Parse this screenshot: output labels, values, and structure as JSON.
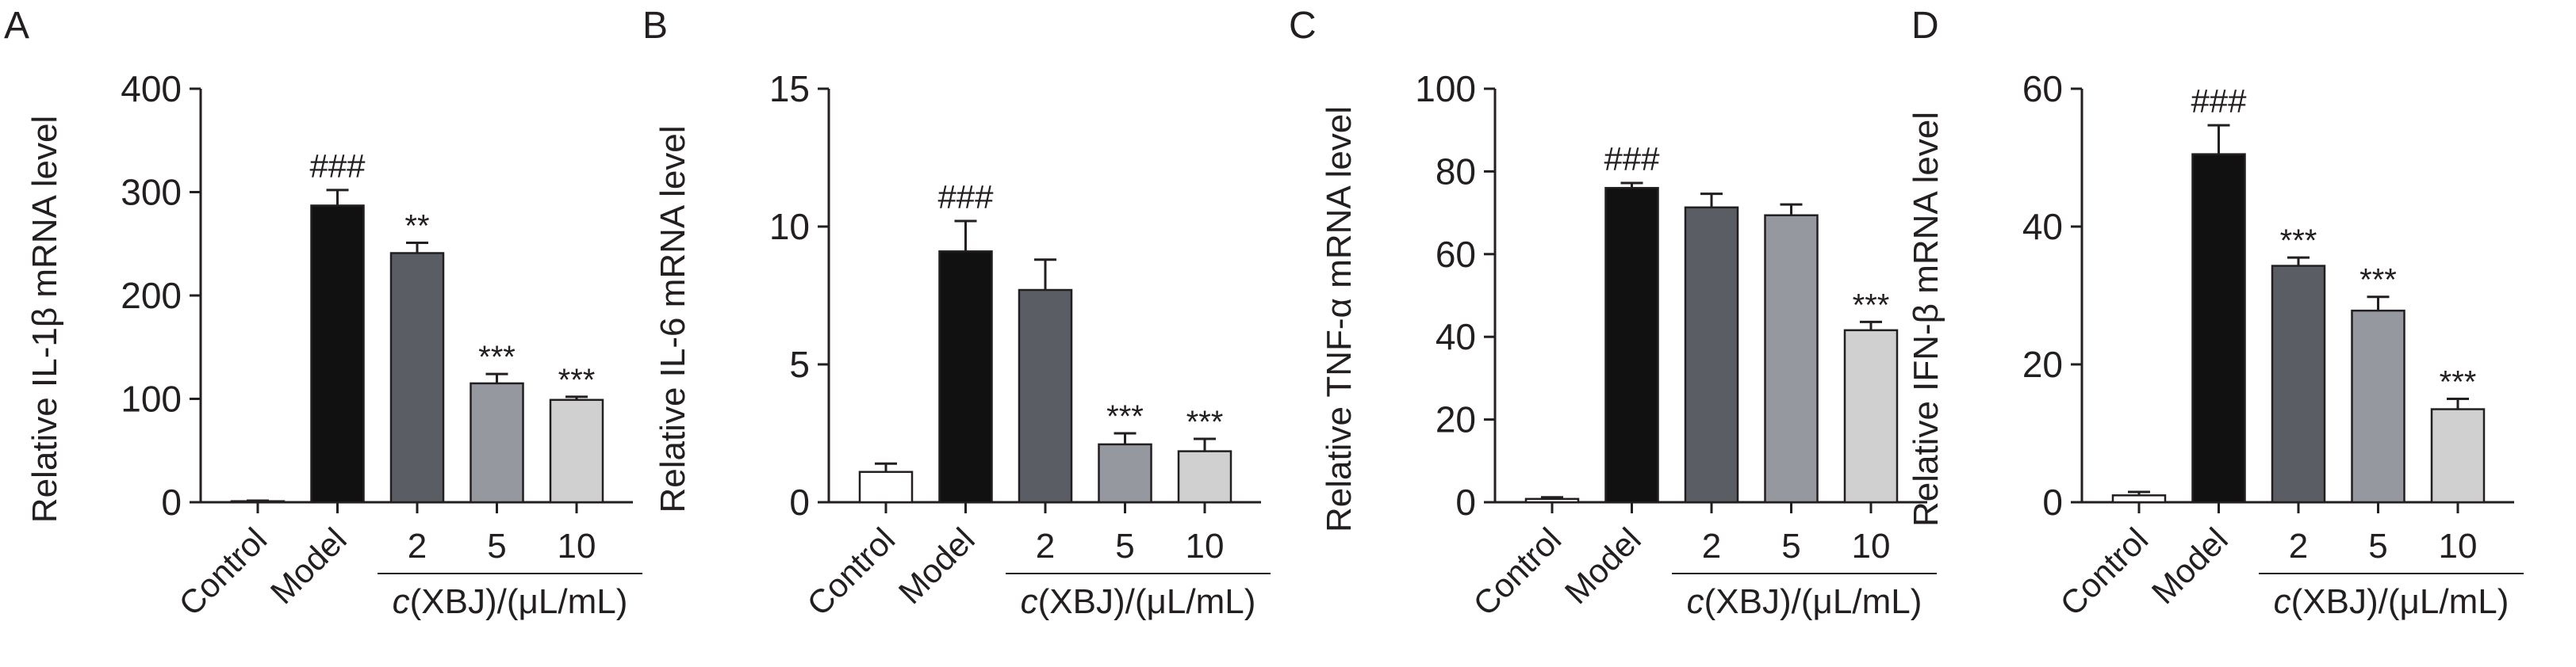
{
  "chart_data": [
    {
      "type": "bar",
      "panel_label": "A",
      "ylabel": "Relative IL-1β mRNA level",
      "ylim": [
        0,
        400
      ],
      "yticks": [
        0,
        100,
        200,
        300,
        400
      ],
      "categories": [
        "Control",
        "Model",
        "2",
        "5",
        "10"
      ],
      "group_label": "c(XBJ)/(μL/mL)",
      "values": [
        1,
        287,
        241,
        115,
        99
      ],
      "errors": [
        0.5,
        15,
        10,
        9,
        3
      ],
      "annotations": [
        "",
        "###",
        "**",
        "***",
        "***"
      ]
    },
    {
      "type": "bar",
      "panel_label": "B",
      "ylabel": "Relative IL-6 mRNA level",
      "ylim": [
        0,
        15
      ],
      "yticks": [
        0,
        5,
        10,
        15
      ],
      "categories": [
        "Control",
        "Model",
        "2",
        "5",
        "10"
      ],
      "group_label": "c(XBJ)/(μL/mL)",
      "values": [
        1.1,
        9.1,
        7.7,
        2.1,
        1.85
      ],
      "errors": [
        0.3,
        1.1,
        1.1,
        0.4,
        0.45
      ],
      "annotations": [
        "",
        "###",
        "",
        "***",
        "***"
      ]
    },
    {
      "type": "bar",
      "panel_label": "C",
      "ylabel": "Relative TNF-α mRNA level",
      "ylim": [
        0,
        100
      ],
      "yticks": [
        0,
        20,
        40,
        60,
        80,
        100
      ],
      "categories": [
        "Control",
        "Model",
        "2",
        "5",
        "10"
      ],
      "group_label": "c(XBJ)/(μL/mL)",
      "values": [
        0.8,
        76,
        71.3,
        69.4,
        41.6
      ],
      "errors": [
        0.4,
        1.2,
        3.3,
        2.6,
        2
      ],
      "annotations": [
        "",
        "###",
        "",
        "",
        "***"
      ]
    },
    {
      "type": "bar",
      "panel_label": "D",
      "ylabel": "Relative IFN-β mRNA level",
      "ylim": [
        0,
        60
      ],
      "yticks": [
        0,
        20,
        40,
        60
      ],
      "categories": [
        "Control",
        "Model",
        "2",
        "5",
        "10"
      ],
      "group_label": "c(XBJ)/(μL/mL)",
      "values": [
        1,
        50.5,
        34.3,
        27.8,
        13.5
      ],
      "errors": [
        0.5,
        4.2,
        1.2,
        2,
        1.5
      ],
      "annotations": [
        "",
        "###",
        "***",
        "***",
        "***"
      ]
    }
  ],
  "colors": {
    "bars": [
      "#ffffff",
      "#111111",
      "#5a5d64",
      "#95989f",
      "#cfd0cf"
    ],
    "ink": "#231f20"
  }
}
